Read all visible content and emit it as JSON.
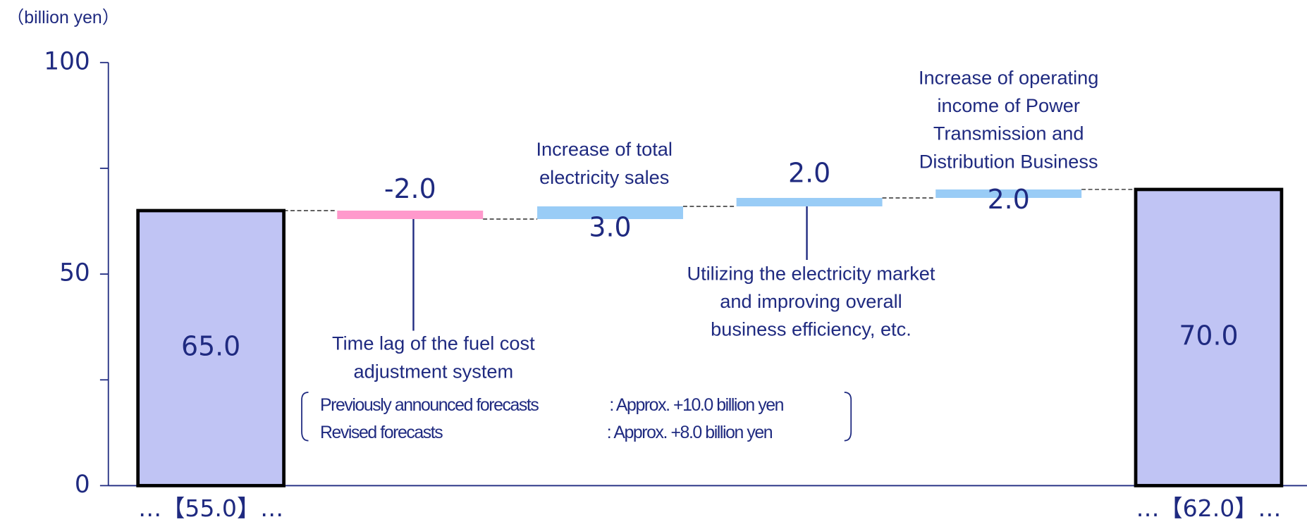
{
  "chart_data": {
    "type": "waterfall",
    "unit_label": "（billion yen）",
    "categories": [
      "…【55.0】…",
      null,
      null,
      null,
      null,
      "…【62.0】…"
    ],
    "values": [
      65,
      -2,
      3,
      2,
      2,
      70
    ],
    "value_labels": [
      "65.0",
      "-2.0",
      "3.0",
      "2.0",
      "2.0",
      "70.0"
    ],
    "kinds": [
      "total",
      "delta",
      "delta",
      "delta",
      "delta",
      "total"
    ],
    "colors": {
      "total": "#c0c4f4",
      "increase": "#99ccf6",
      "decrease": "#ff99cc"
    },
    "ylim": [
      0,
      100
    ],
    "yticks": [
      0,
      50,
      100
    ],
    "minor_yticks": [
      25,
      75
    ],
    "annotations": [
      {
        "lines": [
          "Time lag of the fuel cost",
          "adjustment system"
        ]
      },
      {
        "lines": [
          "Increase of total",
          "electricity sales"
        ]
      },
      {
        "lines": [
          "Utilizing the electricity market",
          "and improving overall",
          "business efficiency, etc."
        ]
      },
      {
        "lines": [
          "Increase of operating",
          "income of Power",
          "Transmission and",
          "Distribution Business"
        ]
      }
    ],
    "note": {
      "rows": [
        [
          "Previously announced forecasts",
          ": Approx. +10.0 billion yen"
        ],
        [
          "Revised forecasts",
          ": Approx. +8.0 billion yen"
        ]
      ]
    }
  }
}
